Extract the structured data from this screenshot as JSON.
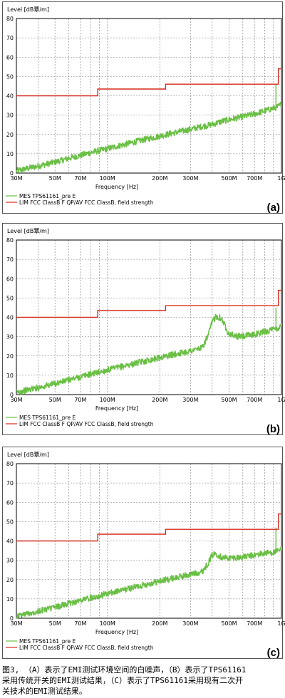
{
  "chart_data": [
    {
      "type": "line",
      "panel_label": "(a)",
      "ylabel": "Level [dB覃/m]",
      "xlabel": "Frequency [Hz]",
      "x_scale": "log",
      "xlim": [
        30,
        1000
      ],
      "ylim": [
        0,
        80
      ],
      "x_ticks": [
        30,
        50,
        70,
        100,
        200,
        300,
        500,
        700,
        1000
      ],
      "x_tick_labels": [
        "30M",
        "50M",
        "70M",
        "100M",
        "200M",
        "300M",
        "500M",
        "700M",
        "1G"
      ],
      "y_ticks": [
        0,
        10,
        20,
        30,
        40,
        50,
        60,
        70,
        80
      ],
      "y_tick_labels": [
        "0",
        "10",
        "20",
        "30",
        "40",
        "50",
        "60",
        "70",
        "80"
      ],
      "grid": true,
      "legend": [
        {
          "label": "MES  TPS61161_pre E",
          "color": "#6abf45"
        },
        {
          "label": "LIM  FCC ClassB F QP/AV    FCC ClassB, field strength",
          "color": "#d42a1c"
        }
      ],
      "series": [
        {
          "name": "MES  TPS61161_pre E",
          "x": [
            30,
            40,
            50,
            60,
            70,
            80,
            90,
            100,
            130,
            160,
            200,
            250,
            300,
            350,
            400,
            450,
            500,
            600,
            700,
            800,
            900,
            950,
            1000
          ],
          "values": [
            0.5,
            3,
            5,
            7,
            8.5,
            10,
            11,
            12,
            14.5,
            16.5,
            18.5,
            20.5,
            22,
            23.5,
            24.5,
            26,
            27,
            28.5,
            30,
            31.5,
            33,
            33.5,
            35
          ],
          "spikes": [
            {
              "x": 930,
              "y": 46
            }
          ]
        },
        {
          "name": "LIM  FCC ClassB F QP/AV    FCC ClassB, field strength",
          "type": "step",
          "x": [
            30,
            88,
            88,
            216,
            216,
            960,
            960,
            1000
          ],
          "values": [
            40,
            40,
            43.5,
            43.5,
            46,
            46,
            54,
            54
          ]
        }
      ]
    },
    {
      "type": "line",
      "panel_label": "(b)",
      "ylabel": "Level [dB覃/m]",
      "xlabel": "Frequency [Hz]",
      "x_scale": "log",
      "xlim": [
        30,
        1000
      ],
      "ylim": [
        0,
        80
      ],
      "x_ticks": [
        30,
        50,
        70,
        100,
        200,
        300,
        500,
        700,
        1000
      ],
      "x_tick_labels": [
        "30M",
        "50M",
        "70M",
        "100M",
        "200M",
        "300M",
        "500M",
        "700M",
        "1G"
      ],
      "y_ticks": [
        0,
        10,
        20,
        30,
        40,
        50,
        60,
        70,
        80
      ],
      "y_tick_labels": [
        "0",
        "10",
        "20",
        "30",
        "40",
        "50",
        "60",
        "70",
        "80"
      ],
      "grid": true,
      "legend": [
        {
          "label": "MES  TPS61161_pre E",
          "color": "#6abf45"
        },
        {
          "label": "LIM  FCC ClassB F QP/AV    FCC ClassB, field strength",
          "color": "#d42a1c"
        }
      ],
      "series": [
        {
          "name": "MES  TPS61161_pre E",
          "x": [
            30,
            40,
            50,
            60,
            70,
            80,
            90,
            100,
            130,
            160,
            200,
            250,
            300,
            350,
            380,
            400,
            420,
            450,
            480,
            500,
            550,
            600,
            700,
            800,
            900,
            950,
            1000
          ],
          "values": [
            0.5,
            3,
            5,
            7,
            8.5,
            10,
            11,
            12,
            14.5,
            16.5,
            18.5,
            20.5,
            22,
            23.5,
            30,
            37,
            40,
            39,
            34,
            31,
            29.5,
            29.5,
            30.5,
            32,
            33,
            33.5,
            35
          ],
          "spikes": [
            {
              "x": 930,
              "y": 45
            }
          ]
        },
        {
          "name": "LIM  FCC ClassB F QP/AV    FCC ClassB, field strength",
          "type": "step",
          "x": [
            30,
            88,
            88,
            216,
            216,
            960,
            960,
            1000
          ],
          "values": [
            40,
            40,
            43.5,
            43.5,
            46,
            46,
            54,
            54
          ]
        }
      ]
    },
    {
      "type": "line",
      "panel_label": "(c)",
      "ylabel": "Level [dB覃/m]",
      "xlabel": "Frequency [Hz]",
      "x_scale": "log",
      "xlim": [
        30,
        1000
      ],
      "ylim": [
        0,
        80
      ],
      "x_ticks": [
        30,
        50,
        70,
        100,
        200,
        300,
        500,
        700,
        1000
      ],
      "x_tick_labels": [
        "30M",
        "50M",
        "70M",
        "100M",
        "200M",
        "300M",
        "500M",
        "700M",
        "1G"
      ],
      "y_ticks": [
        0,
        10,
        20,
        30,
        40,
        50,
        60,
        70,
        80
      ],
      "y_tick_labels": [
        "0",
        "10",
        "20",
        "30",
        "40",
        "50",
        "60",
        "70",
        "80"
      ],
      "grid": true,
      "legend": [
        {
          "label": "MES  TPS61161_pre E",
          "color": "#6abf45"
        },
        {
          "label": "LIM  FCC ClassB F QP/AV    FCC ClassB, field strength",
          "color": "#d42a1c"
        }
      ],
      "series": [
        {
          "name": "MES  TPS61161_pre E",
          "x": [
            30,
            40,
            50,
            60,
            70,
            80,
            90,
            100,
            130,
            160,
            200,
            250,
            300,
            350,
            380,
            400,
            420,
            450,
            500,
            600,
            700,
            800,
            900,
            950,
            1000
          ],
          "values": [
            0.5,
            3,
            5,
            7,
            8.5,
            10,
            11,
            12,
            14.5,
            16.5,
            18.5,
            20.5,
            22,
            23.5,
            28,
            32,
            33,
            31,
            30.5,
            31,
            32,
            33,
            33.5,
            34,
            35
          ],
          "spikes": [
            {
              "x": 930,
              "y": 47
            }
          ]
        },
        {
          "name": "LIM  FCC ClassB F QP/AV    FCC ClassB, field strength",
          "type": "step",
          "x": [
            30,
            88,
            88,
            216,
            216,
            960,
            960,
            1000
          ],
          "values": [
            40,
            40,
            43.5,
            43.5,
            46,
            46,
            54,
            54
          ]
        }
      ]
    }
  ],
  "caption": {
    "line1": "图3, （A）表示了EMI测试环境空间的白噪声，（B）表示了TPS61161",
    "line2": "采用传统开关的EMI测试结果，（C）表示了TPS61161采用现有二次开",
    "line3": "关技术的EMI测试结果。"
  }
}
